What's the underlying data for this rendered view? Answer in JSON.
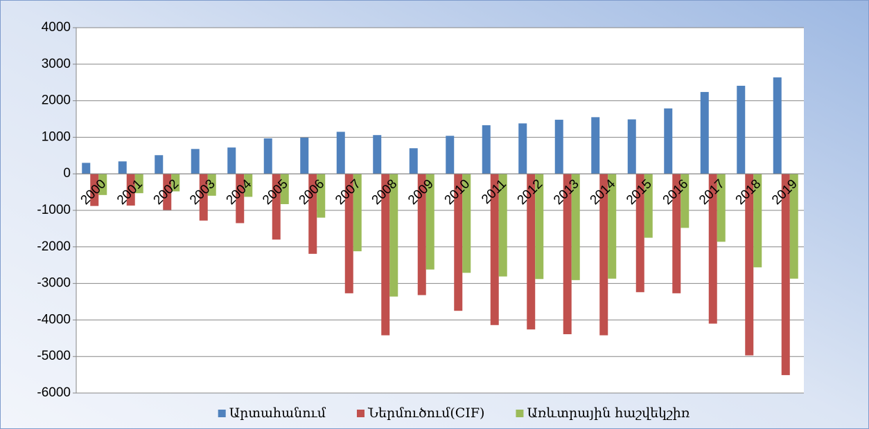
{
  "chart_data": {
    "type": "bar",
    "categories": [
      "2000",
      "2001",
      "2002",
      "2003",
      "2004",
      "2005",
      "2006",
      "2007",
      "2008",
      "2009",
      "2010",
      "2011",
      "2012",
      "2013",
      "2014",
      "2015",
      "2016",
      "2017",
      "2018",
      "2019"
    ],
    "series": [
      {
        "name": "Արտահանում",
        "color": "#4f81bd",
        "values": [
          300,
          340,
          510,
          680,
          720,
          970,
          990,
          1150,
          1060,
          700,
          1040,
          1330,
          1380,
          1480,
          1550,
          1490,
          1790,
          2240,
          2410,
          2640
        ]
      },
      {
        "name": "Ներմուծում(CIF)",
        "color": "#c0504d",
        "values": [
          -880,
          -870,
          -990,
          -1280,
          -1350,
          -1800,
          -2190,
          -3270,
          -4420,
          -3320,
          -3750,
          -4140,
          -4260,
          -4390,
          -4420,
          -3240,
          -3270,
          -4100,
          -4970,
          -5510
        ]
      },
      {
        "name": "Առևտրային հաշվեկշիռ",
        "color": "#9bbb59",
        "values": [
          -580,
          -530,
          -480,
          -600,
          -630,
          -830,
          -1200,
          -2120,
          -3360,
          -2620,
          -2710,
          -2810,
          -2880,
          -2910,
          -2870,
          -1750,
          -1480,
          -1860,
          -2560,
          -2870
        ]
      }
    ],
    "ylim": [
      -6000,
      4000
    ],
    "yticks": [
      -6000,
      -5000,
      -4000,
      -3000,
      -2000,
      -1000,
      0,
      1000,
      2000,
      3000,
      4000
    ],
    "grid": true,
    "legend": "bottom"
  }
}
